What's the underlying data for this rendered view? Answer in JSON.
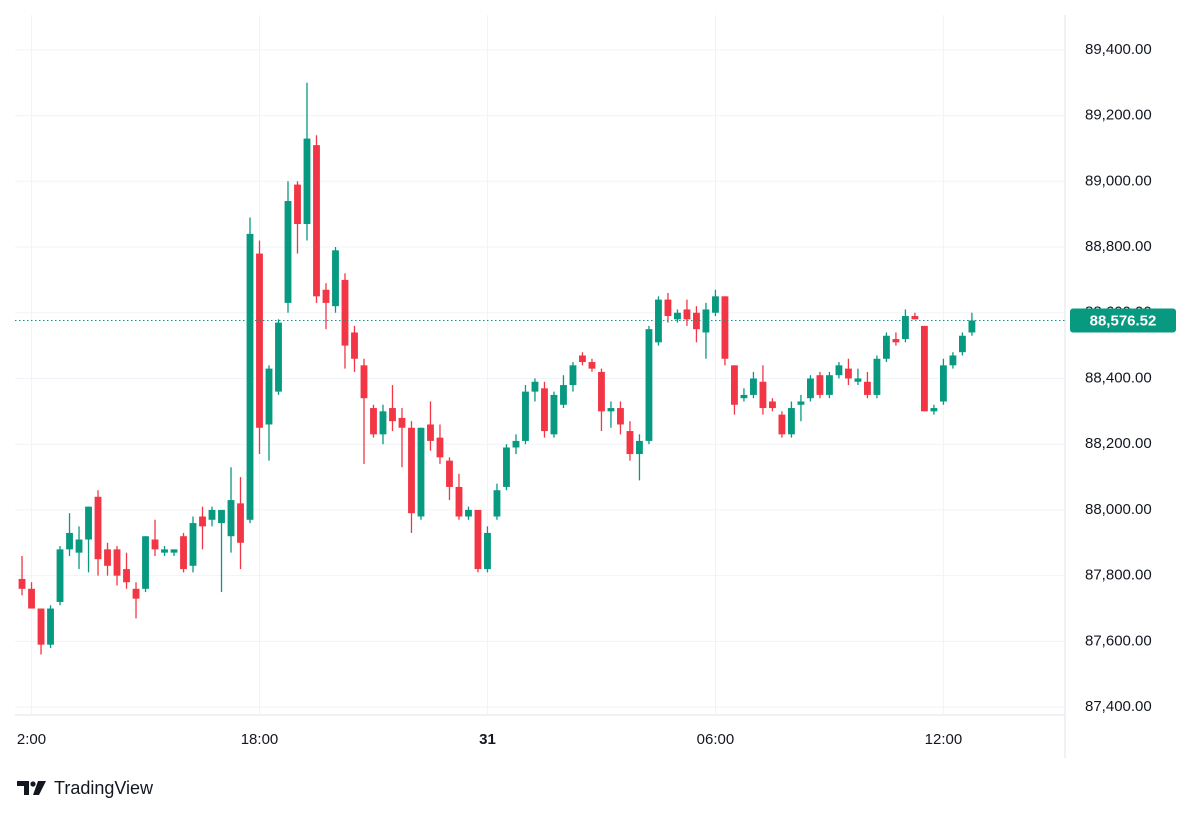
{
  "chart_data": {
    "type": "candlestick",
    "open": [
      87790,
      87760,
      87700,
      87590,
      87720,
      87880,
      87870,
      87910,
      88040,
      87880,
      87880,
      87820,
      87760,
      87760,
      87910,
      87870,
      87870,
      87920,
      87830,
      87980,
      87970,
      87960,
      87920,
      88020,
      87970,
      88780,
      88260,
      88360,
      88630,
      88990,
      88870,
      89110,
      88670,
      88620,
      88700,
      88540,
      88440,
      88310,
      88230,
      88310,
      88280,
      88250,
      87980,
      88260,
      88220,
      88150,
      88070,
      87980,
      88000,
      87820,
      87980,
      88070,
      88190,
      88210,
      88360,
      88370,
      88230,
      88320,
      88380,
      88470,
      88450,
      88420,
      88300,
      88310,
      88240,
      88170,
      88210,
      88510,
      88640,
      88580,
      88610,
      88600,
      88540,
      88600,
      88650,
      88440,
      88340,
      88350,
      88390,
      88330,
      88290,
      88230,
      88320,
      88340,
      88410,
      88350,
      88410,
      88430,
      88390,
      88390,
      88350,
      88460,
      88520,
      88520,
      88590,
      88560,
      88300,
      88330,
      88440,
      88480,
      88540
    ],
    "high": [
      87860,
      87780,
      87700,
      87710,
      87890,
      87990,
      87950,
      88010,
      88060,
      87900,
      87890,
      87870,
      87780,
      87920,
      87970,
      87890,
      87880,
      87930,
      87980,
      88010,
      88010,
      88000,
      88130,
      88100,
      88890,
      88820,
      88440,
      88580,
      89000,
      89000,
      89300,
      89140,
      88690,
      88800,
      88720,
      88560,
      88460,
      88320,
      88320,
      88380,
      88310,
      88270,
      88250,
      88330,
      88260,
      88160,
      88110,
      88010,
      88000,
      87950,
      88080,
      88200,
      88230,
      88380,
      88400,
      88390,
      88360,
      88410,
      88450,
      88480,
      88460,
      88430,
      88330,
      88330,
      88270,
      88230,
      88560,
      88650,
      88660,
      88610,
      88640,
      88620,
      88630,
      88670,
      88650,
      88440,
      88370,
      88420,
      88440,
      88340,
      88300,
      88330,
      88350,
      88410,
      88420,
      88420,
      88450,
      88460,
      88430,
      88420,
      88470,
      88540,
      88540,
      88610,
      88600,
      88560,
      88320,
      88460,
      88480,
      88540,
      88600
    ],
    "low": [
      87740,
      87700,
      87560,
      87580,
      87710,
      87860,
      87820,
      87810,
      87800,
      87800,
      87770,
      87760,
      87670,
      87750,
      87860,
      87860,
      87860,
      87810,
      87810,
      87880,
      87950,
      87750,
      87870,
      87820,
      87960,
      88170,
      88150,
      88350,
      88600,
      88780,
      88820,
      88630,
      88550,
      88600,
      88430,
      88420,
      88140,
      88220,
      88200,
      88240,
      88130,
      87930,
      87970,
      88180,
      88140,
      88030,
      87970,
      87970,
      87810,
      87810,
      87970,
      88060,
      88170,
      88200,
      88330,
      88220,
      88220,
      88310,
      88360,
      88440,
      88420,
      88240,
      88250,
      88230,
      88150,
      88090,
      88200,
      88500,
      88570,
      88570,
      88560,
      88510,
      88460,
      88590,
      88440,
      88290,
      88330,
      88340,
      88290,
      88300,
      88220,
      88220,
      88270,
      88330,
      88340,
      88340,
      88400,
      88380,
      88380,
      88340,
      88340,
      88450,
      88500,
      88510,
      88580,
      88300,
      88290,
      88320,
      88430,
      88470,
      88530
    ],
    "close": [
      87760,
      87700,
      87590,
      87700,
      87880,
      87930,
      87910,
      88010,
      87850,
      87830,
      87800,
      87780,
      87730,
      87920,
      87880,
      87880,
      87880,
      87820,
      87960,
      87950,
      88000,
      88000,
      88030,
      87900,
      88840,
      88250,
      88430,
      88570,
      88940,
      88870,
      89130,
      88650,
      88630,
      88790,
      88500,
      88460,
      88340,
      88230,
      88300,
      88270,
      88250,
      87990,
      88250,
      88210,
      88160,
      88070,
      87980,
      88000,
      87820,
      87930,
      88060,
      88190,
      88210,
      88360,
      88390,
      88240,
      88350,
      88380,
      88440,
      88450,
      88430,
      88300,
      88310,
      88260,
      88170,
      88210,
      88550,
      88640,
      88590,
      88600,
      88580,
      88550,
      88610,
      88650,
      88460,
      88320,
      88350,
      88400,
      88310,
      88310,
      88230,
      88310,
      88330,
      88400,
      88350,
      88410,
      88440,
      88400,
      88400,
      88350,
      88460,
      88530,
      88510,
      88590,
      88580,
      88300,
      88310,
      88440,
      88470,
      88530,
      88576.52
    ],
    "up_color": "#089981",
    "down_color": "#f23645",
    "ylim": [
      87376,
      89506
    ],
    "yticks": [
      {
        "value": 87400,
        "label": "87,400.00"
      },
      {
        "value": 87600,
        "label": "87,600.00"
      },
      {
        "value": 87800,
        "label": "87,800.00"
      },
      {
        "value": 88000,
        "label": "88,000.00"
      },
      {
        "value": 88200,
        "label": "88,200.00"
      },
      {
        "value": 88400,
        "label": "88,400.00"
      },
      {
        "value": 88600,
        "label": "88,600.00"
      },
      {
        "value": 88800,
        "label": "88,800.00"
      },
      {
        "value": 89000,
        "label": "89,000.00"
      },
      {
        "value": 89200,
        "label": "89,200.00"
      },
      {
        "value": 89400,
        "label": "89,400.00"
      }
    ],
    "xlim": [
      -0.74,
      109.8
    ],
    "xticks": [
      {
        "value": 1,
        "label": "2:00"
      },
      {
        "value": 25,
        "label": "18:00"
      },
      {
        "value": 49,
        "label": "31"
      },
      {
        "value": 73,
        "label": "06:00"
      },
      {
        "value": 97,
        "label": "12:00"
      }
    ],
    "last_price": {
      "value": 88576.52,
      "label": "88,576.52"
    },
    "grid": true
  },
  "brand": "TradingView"
}
